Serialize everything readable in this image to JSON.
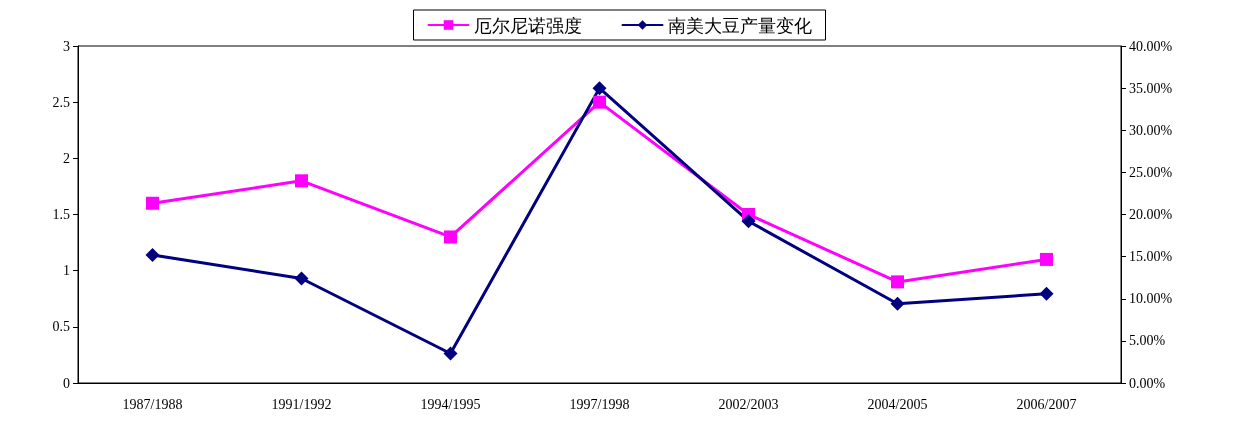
{
  "chart_data": {
    "type": "line",
    "categories": [
      "1987/1988",
      "1991/1992",
      "1994/1995",
      "1997/1998",
      "2002/2003",
      "2004/2005",
      "2006/2007"
    ],
    "series": [
      {
        "name": "厄尔尼诺强度",
        "color": "#ff00ff",
        "marker": "square",
        "values": [
          1.6,
          1.8,
          1.3,
          2.5,
          1.5,
          0.9,
          1.1
        ]
      },
      {
        "name": "南美大豆产量变化",
        "color": "#000080",
        "marker": "diamond",
        "axis": "y2",
        "values": [
          15.2,
          12.4,
          3.5,
          35.0,
          19.2,
          9.4,
          10.6
        ]
      }
    ],
    "ylim": [
      0,
      3
    ],
    "yticks": [
      0,
      0.5,
      1,
      1.5,
      2,
      2.5,
      3
    ],
    "y2lim": [
      0,
      40
    ],
    "y2ticks": [
      {
        "value": 0,
        "label": "0.00%"
      },
      {
        "value": 5,
        "label": "5.00%"
      },
      {
        "value": 10,
        "label": "10.00%"
      },
      {
        "value": 15,
        "label": "15.00%"
      },
      {
        "value": 20,
        "label": "20.00%"
      },
      {
        "value": 25,
        "label": "25.00%"
      },
      {
        "value": 30,
        "label": "30.00%"
      },
      {
        "value": 35,
        "label": "35.00%"
      },
      {
        "value": 40,
        "label": "40.00%"
      }
    ],
    "grid": false,
    "legend": "top",
    "line_style": "solid"
  }
}
